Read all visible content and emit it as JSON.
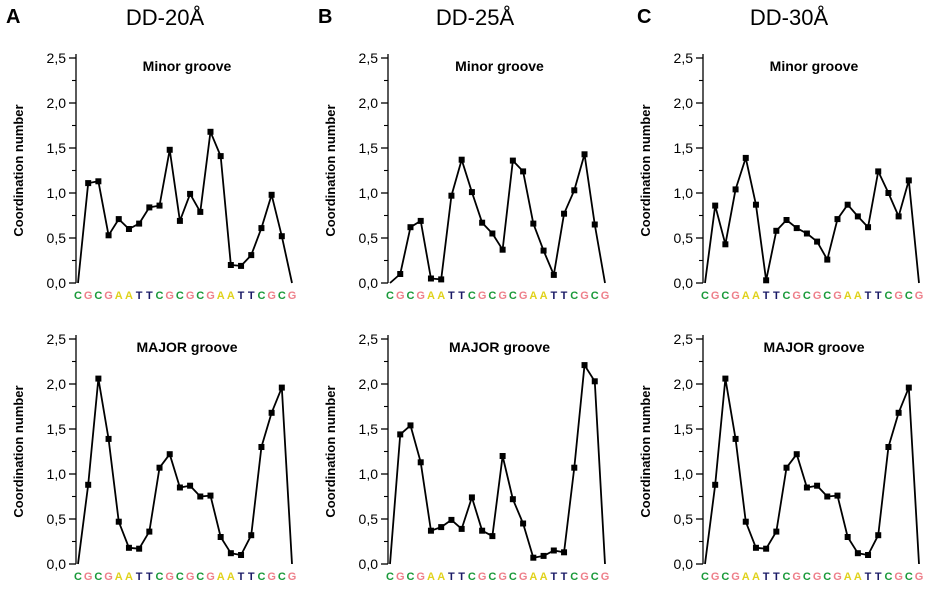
{
  "panels": [
    {
      "letter": "A",
      "title": "DD-20Å"
    },
    {
      "letter": "B",
      "title": "DD-25Å"
    },
    {
      "letter": "C",
      "title": "DD-30Å"
    }
  ],
  "base_colors": {
    "C": "#1a9a3a",
    "G": "#ee7f8a",
    "A": "#e0d21c",
    "T": "#1a1a66"
  },
  "chart_data": [
    {
      "type": "line",
      "panel": "A",
      "title": "Minor groove",
      "ylabel": "Coordination number",
      "categories": [
        "C",
        "G",
        "C",
        "G",
        "A",
        "A",
        "T",
        "T",
        "C",
        "G",
        "C",
        "G",
        "C",
        "G",
        "A",
        "A",
        "T",
        "T",
        "C",
        "G",
        "C",
        "G"
      ],
      "ylim": [
        0,
        2.5
      ],
      "yticks": [
        "0,0",
        "0,5",
        "1,0",
        "1,5",
        "2,0",
        "2,5"
      ],
      "values": [
        0,
        1.11,
        1.13,
        0.53,
        0.71,
        0.6,
        0.66,
        0.84,
        0.86,
        1.48,
        0.69,
        0.99,
        0.79,
        1.68,
        1.41,
        0.2,
        0.19,
        0.31,
        0.61,
        0.98,
        0.52,
        0
      ]
    },
    {
      "type": "line",
      "panel": "B",
      "title": "Minor groove",
      "ylabel": "Coordination number",
      "categories": [
        "C",
        "G",
        "C",
        "G",
        "A",
        "A",
        "T",
        "T",
        "C",
        "G",
        "C",
        "G",
        "C",
        "G",
        "A",
        "A",
        "T",
        "T",
        "C",
        "G",
        "C",
        "G"
      ],
      "ylim": [
        0,
        2.5
      ],
      "yticks": [
        "0,0",
        "0,5",
        "1,0",
        "1,5",
        "2,0",
        "2,5"
      ],
      "values": [
        0,
        0.1,
        0.62,
        0.69,
        0.05,
        0.04,
        0.97,
        1.37,
        1.01,
        0.67,
        0.55,
        0.37,
        1.36,
        1.24,
        0.66,
        0.36,
        0.09,
        0.77,
        1.03,
        1.43,
        0.65,
        0
      ]
    },
    {
      "type": "line",
      "panel": "C",
      "title": "Minor groove",
      "ylabel": "Coordination number",
      "categories": [
        "C",
        "G",
        "C",
        "G",
        "A",
        "A",
        "T",
        "T",
        "C",
        "G",
        "C",
        "G",
        "C",
        "G",
        "A",
        "A",
        "T",
        "T",
        "C",
        "G",
        "C",
        "G"
      ],
      "ylim": [
        0,
        2.5
      ],
      "yticks": [
        "0,0",
        "0,5",
        "1,0",
        "1,5",
        "2,0",
        "2,5"
      ],
      "values": [
        0,
        0.86,
        0.43,
        1.04,
        1.39,
        0.87,
        0.03,
        0.58,
        0.7,
        0.61,
        0.55,
        0.46,
        0.26,
        0.71,
        0.87,
        0.74,
        0.62,
        1.24,
        1.0,
        0.74,
        1.14,
        0
      ]
    },
    {
      "type": "line",
      "panel": "A",
      "title": "MAJOR groove",
      "ylabel": "Coordination number",
      "categories": [
        "C",
        "G",
        "C",
        "G",
        "A",
        "A",
        "T",
        "T",
        "C",
        "G",
        "C",
        "G",
        "C",
        "G",
        "A",
        "A",
        "T",
        "T",
        "C",
        "G",
        "C",
        "G"
      ],
      "ylim": [
        0,
        2.5
      ],
      "yticks": [
        "0,0",
        "0,5",
        "1,0",
        "1,5",
        "2,0",
        "2,5"
      ],
      "values": [
        0,
        0.88,
        2.06,
        1.39,
        0.47,
        0.18,
        0.17,
        0.36,
        1.07,
        1.22,
        0.85,
        0.87,
        0.75,
        0.76,
        0.3,
        0.12,
        0.1,
        0.32,
        1.3,
        1.68,
        1.96,
        0
      ]
    },
    {
      "type": "line",
      "panel": "B",
      "title": "MAJOR groove",
      "ylabel": "Coordination number",
      "categories": [
        "C",
        "G",
        "C",
        "G",
        "A",
        "A",
        "T",
        "T",
        "C",
        "G",
        "C",
        "G",
        "C",
        "G",
        "A",
        "A",
        "T",
        "T",
        "C",
        "G",
        "C",
        "G"
      ],
      "ylim": [
        0,
        2.5
      ],
      "yticks": [
        "0,0",
        "0,5",
        "1,0",
        "1,5",
        "2,0",
        "2,5"
      ],
      "values": [
        0,
        1.44,
        1.54,
        1.13,
        0.37,
        0.41,
        0.49,
        0.39,
        0.74,
        0.37,
        0.31,
        1.2,
        0.72,
        0.45,
        0.07,
        0.09,
        0.15,
        0.13,
        1.07,
        2.21,
        2.03,
        0
      ]
    },
    {
      "type": "line",
      "panel": "C",
      "title": "MAJOR groove",
      "ylabel": "Coordination number",
      "categories": [
        "C",
        "G",
        "C",
        "G",
        "A",
        "A",
        "T",
        "T",
        "C",
        "G",
        "C",
        "G",
        "C",
        "G",
        "A",
        "A",
        "T",
        "T",
        "C",
        "G",
        "C",
        "G"
      ],
      "ylim": [
        0,
        2.5
      ],
      "yticks": [
        "0,0",
        "0,5",
        "1,0",
        "1,5",
        "2,0",
        "2,5"
      ],
      "values": [
        0,
        0.88,
        2.06,
        1.39,
        0.47,
        0.18,
        0.17,
        0.36,
        1.07,
        1.22,
        0.85,
        0.87,
        0.75,
        0.76,
        0.3,
        0.12,
        0.1,
        0.32,
        1.3,
        1.68,
        1.96,
        0
      ]
    }
  ]
}
